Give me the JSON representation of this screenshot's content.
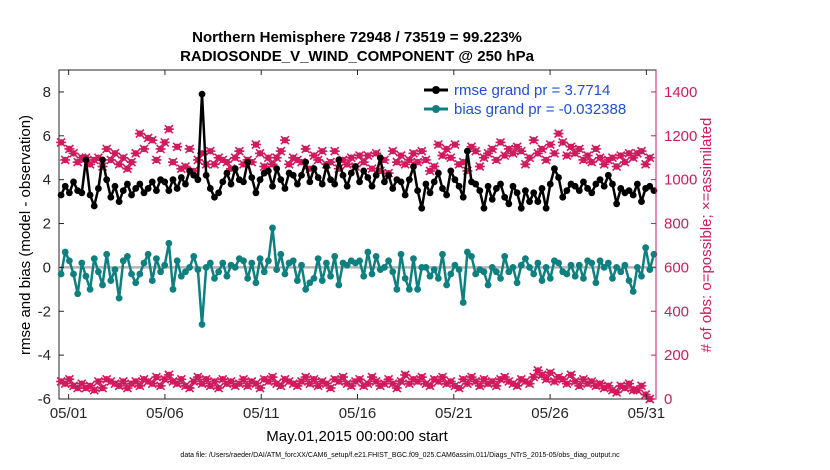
{
  "chart_data": {
    "type": "line",
    "title_line1": "Northern Hemisphere 72948 / 73519 = 99.223%",
    "title_line2": "RADIOSONDE_V_WIND_COMPONENT @ 250 hPa",
    "xlabel": "May.01,2015 00:00:00 start",
    "ylabel_left": "rmse and bias (model - observation)",
    "ylabel_right": "# of obs: o=possible; ×=assimilated",
    "footnote": "data file: /Users/raeder/DAI/ATM_forcXX/CAM6_setup/f.e21.FHIST_BGC.f09_025.CAM6assim.011/Diags_NTrS_2015-05/obs_diag_output.nc",
    "xlim": [
      0.5,
      31.5
    ],
    "ylim_left": [
      -6,
      9
    ],
    "ylim_right": [
      0,
      1500
    ],
    "x_tick_labels": [
      "05/01",
      "05/06",
      "05/11",
      "05/16",
      "05/21",
      "05/26",
      "05/31"
    ],
    "x_tick_values": [
      1,
      6,
      11,
      16,
      21,
      26,
      31
    ],
    "y_left_ticks": [
      8,
      6,
      4,
      2,
      0,
      -2,
      -4,
      -6
    ],
    "y_right_ticks": [
      1400,
      1200,
      1000,
      800,
      600,
      400,
      200,
      0
    ],
    "colors": {
      "rmse": "#000000",
      "bias": "#0f8080",
      "obs": "#d21a5e",
      "zero_line": "#b4b4b4",
      "legend_text": "#1f4fd6"
    },
    "series": [
      {
        "name": "rmse",
        "legend": "rmse grand pr = 3.7714",
        "values": [
          3.3,
          3.7,
          3.4,
          3.9,
          3.5,
          3.4,
          4.9,
          3.3,
          2.8,
          3.6,
          4.9,
          4.0,
          3.2,
          3.7,
          3.0,
          3.5,
          3.8,
          3.3,
          3.6,
          3.8,
          3.4,
          3.6,
          3.9,
          3.5,
          4.0,
          3.9,
          3.5,
          4.0,
          3.6,
          4.1,
          3.8,
          4.4,
          4.2,
          4.0,
          7.9,
          4.2,
          3.6,
          3.2,
          3.4,
          3.9,
          4.3,
          3.8,
          4.5,
          4.0,
          3.9,
          4.8,
          4.1,
          3.4,
          4.0,
          4.3,
          4.4,
          3.7,
          4.5,
          4.0,
          3.6,
          4.3,
          4.2,
          3.8,
          4.2,
          4.8,
          3.9,
          4.5,
          4.1,
          3.8,
          4.6,
          4.0,
          3.8,
          4.9,
          4.2,
          3.7,
          4.3,
          4.6,
          3.9,
          4.4,
          4.1,
          3.7,
          4.2,
          5.0,
          3.9,
          4.2,
          3.6,
          4.0,
          3.9,
          3.3,
          4.0,
          4.6,
          3.5,
          2.7,
          3.8,
          3.4,
          3.9,
          4.3,
          3.6,
          3.3,
          4.4,
          4.0,
          3.7,
          3.2,
          5.3,
          3.9,
          3.8,
          3.5,
          2.7,
          3.7,
          3.1,
          3.6,
          3.8,
          3.2,
          2.9,
          3.7,
          3.4,
          2.7,
          3.5,
          3.0,
          3.4,
          3.0,
          3.6,
          2.7,
          3.8,
          4.5,
          4.1,
          3.2,
          3.5,
          3.8,
          3.7,
          3.5,
          3.9,
          3.6,
          3.4,
          3.8,
          4.0,
          3.7,
          4.2,
          3.8,
          2.9,
          3.6,
          3.4,
          3.5,
          3.3,
          3.8,
          3.0,
          3.6,
          3.7,
          3.5
        ]
      },
      {
        "name": "bias",
        "legend": "bias grand pr = -0.032388",
        "values": [
          -0.3,
          0.7,
          0.3,
          -0.3,
          -1.2,
          0.2,
          -0.4,
          -1.0,
          0.4,
          -0.2,
          -0.8,
          0.6,
          -0.6,
          -0.1,
          -1.4,
          0.3,
          0.5,
          -0.3,
          -0.7,
          -0.3,
          0.2,
          0.6,
          -0.6,
          0.4,
          -0.2,
          0.1,
          1.1,
          -1.0,
          0.3,
          -0.4,
          -0.2,
          0.0,
          0.5,
          -0.1,
          -2.6,
          0.0,
          0.2,
          -0.5,
          -0.2,
          0.2,
          -0.4,
          0.1,
          0.0,
          0.4,
          0.3,
          -0.5,
          0.2,
          -0.7,
          0.4,
          -0.2,
          0.3,
          1.8,
          -0.1,
          0.6,
          -0.3,
          0.2,
          0.3,
          -0.6,
          0.1,
          -1.0,
          -0.7,
          -0.5,
          0.4,
          -0.6,
          0.2,
          -0.4,
          0.5,
          -0.8,
          0.2,
          0.1,
          0.3,
          0.2,
          0.3,
          -0.4,
          0.7,
          -0.3,
          0.5,
          -0.1,
          0.0,
          0.3,
          -0.2,
          -1.0,
          0.6,
          -0.5,
          -1.0,
          0.4,
          -1.0,
          0.0,
          0.0,
          -0.4,
          -0.1,
          -0.5,
          0.6,
          -0.8,
          -0.3,
          0.1,
          -0.1,
          -1.6,
          0.7,
          0.5,
          -0.3,
          -0.1,
          -0.2,
          -0.8,
          0.0,
          -0.2,
          -0.5,
          0.5,
          -0.2,
          0.0,
          -0.7,
          0.1,
          0.4,
          0.0,
          -0.3,
          0.2,
          -0.6,
          0.0,
          -0.5,
          0.3,
          0.2,
          -0.2,
          -0.3,
          0.1,
          -0.4,
          0.1,
          -0.5,
          0.3,
          0.2,
          -0.7,
          0.3,
          0.0,
          0.2,
          -0.5,
          0.0,
          -0.2,
          0.1,
          -0.6,
          -1.1,
          0.0,
          -0.4,
          0.9,
          -0.1,
          0.6
        ]
      },
      {
        "name": "possible",
        "legend": "o=possible",
        "values": [
          1170,
          1090,
          1140,
          1120,
          1080,
          1100,
          1100,
          1070,
          1090,
          1100,
          1060,
          1140,
          1090,
          1120,
          1070,
          1100,
          1050,
          1080,
          1120,
          1210,
          1140,
          1190,
          1180,
          1090,
          1140,
          1170,
          1230,
          1080,
          1150,
          1050,
          1060,
          1140,
          1040,
          1090,
          1120,
          1070,
          1130,
          1070,
          1100,
          1090,
          1080,
          1050,
          1100,
          1130,
          1070,
          1090,
          1080,
          1160,
          1120,
          1060,
          1100,
          1070,
          1100,
          1130,
          1180,
          1070,
          1100,
          1090,
          1080,
          1140,
          1050,
          1110,
          1090,
          1130,
          1070,
          1080,
          1130,
          1050,
          1090,
          1070,
          1100,
          1060,
          1110,
          1080,
          1110,
          1050,
          1120,
          1040,
          1090,
          1030,
          1130,
          1080,
          1110,
          1070,
          1090,
          1120,
          1080,
          1130,
          1090,
          1040,
          1060,
          1160,
          1110,
          1140,
          1100,
          1160,
          1070,
          1080,
          1040,
          1150,
          1130,
          1060,
          1100,
          1120,
          1140,
          1090,
          1170,
          1110,
          1140,
          1120,
          1150,
          1130,
          1070,
          1100,
          1180,
          1120,
          1140,
          1090,
          1160,
          1120,
          1210,
          1170,
          1110,
          1150,
          1120,
          1140,
          1090,
          1110,
          1080,
          1140,
          1100,
          1070,
          1090,
          1100,
          1060,
          1110,
          1080,
          1120,
          1100,
          1120,
          1130,
          1070,
          1100
        ]
      },
      {
        "name": "assimilated",
        "legend": "×=assimilated",
        "values": [
          80,
          70,
          90,
          60,
          50,
          70,
          50,
          60,
          40,
          80,
          50,
          90,
          80,
          70,
          60,
          80,
          50,
          70,
          80,
          60,
          90,
          80,
          70,
          100,
          60,
          90,
          110,
          80,
          70,
          90,
          60,
          50,
          80,
          100,
          70,
          90,
          60,
          80,
          50,
          90,
          70,
          80,
          60,
          70,
          90,
          60,
          80,
          70,
          50,
          90,
          80,
          100,
          70,
          60,
          90,
          80,
          70,
          60,
          80,
          100,
          70,
          90,
          60,
          80,
          70,
          50,
          90,
          80,
          100,
          70,
          60,
          80,
          90,
          60,
          70,
          100,
          80,
          60,
          70,
          90,
          70,
          50,
          80,
          110,
          70,
          90,
          80,
          100,
          70,
          60,
          90,
          80,
          100,
          70,
          80,
          60,
          50,
          90,
          70,
          100,
          80,
          60,
          90,
          70,
          80,
          60,
          90,
          100,
          80,
          70,
          60,
          90,
          80,
          70,
          100,
          130,
          110,
          90,
          120,
          80,
          100,
          90,
          70,
          110,
          80,
          60,
          90,
          70,
          80,
          60,
          70,
          50,
          60,
          40,
          30,
          60,
          50,
          70,
          40,
          40,
          60,
          20,
          0
        ]
      }
    ]
  }
}
